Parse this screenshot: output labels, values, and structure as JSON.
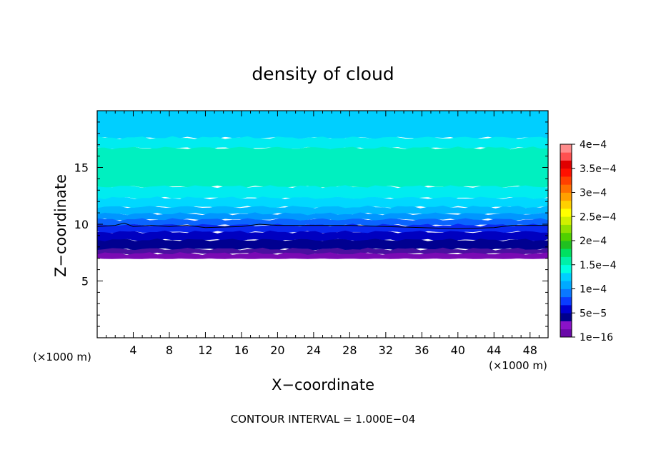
{
  "chart_data": {
    "type": "heatmap",
    "title": "density of cloud",
    "xlabel": "X−coordinate",
    "ylabel": "Z−coordinate",
    "x_unit": "(×1000 m)",
    "x_unit_right": "(×1000 m)",
    "xlim": [
      0,
      50
    ],
    "ylim": [
      0,
      20
    ],
    "x_ticks": [
      4,
      8,
      12,
      16,
      20,
      24,
      28,
      32,
      36,
      40,
      44,
      48
    ],
    "x_tick_labels": [
      "4",
      "8",
      "12",
      "16",
      "20",
      "24",
      "28",
      "32",
      "36",
      "40",
      "44",
      "48"
    ],
    "y_ticks": [
      5,
      10,
      15
    ],
    "y_tick_labels": [
      "5",
      "10",
      "15"
    ],
    "colorbar": {
      "labels": [
        "4e−4",
        "3.5e−4",
        "3e−4",
        "2.5e−4",
        "2e−4",
        "1.5e−4",
        "1e−4",
        "5e−5",
        "1e−16"
      ],
      "values": [
        0.0004,
        0.00035,
        0.0003,
        0.00025,
        0.0002,
        0.00015,
        0.0001,
        5e-05,
        1e-16
      ],
      "colors_bottom_to_top": [
        "#6a0aa8",
        "#8a12c8",
        "#00008c",
        "#0000d0",
        "#0a3cff",
        "#0a78ff",
        "#00aaff",
        "#00cfff",
        "#00ffe0",
        "#00f0a8",
        "#00e060",
        "#20c020",
        "#50d000",
        "#90e000",
        "#d0f000",
        "#ffff00",
        "#ffd000",
        "#ffa000",
        "#ff7000",
        "#ff4000",
        "#ff1000",
        "#e00000",
        "#ff5050",
        "#ff8c8c"
      ]
    },
    "field_bands": [
      {
        "z_bottom": 17.6,
        "z_top": 20.0,
        "color": "#00cfff"
      },
      {
        "z_bottom": 16.7,
        "z_top": 17.6,
        "color": "#00ecf0"
      },
      {
        "z_bottom": 13.3,
        "z_top": 16.7,
        "color": "#00f0c0"
      },
      {
        "z_bottom": 12.3,
        "z_top": 13.3,
        "color": "#00ecf0"
      },
      {
        "z_bottom": 11.5,
        "z_top": 12.3,
        "color": "#00d8ff"
      },
      {
        "z_bottom": 10.9,
        "z_top": 11.5,
        "color": "#00b8ff"
      },
      {
        "z_bottom": 10.4,
        "z_top": 10.9,
        "color": "#0096ff"
      },
      {
        "z_bottom": 9.9,
        "z_top": 10.4,
        "color": "#0a64ff"
      },
      {
        "z_bottom": 9.3,
        "z_top": 9.9,
        "color": "#0a28f0"
      },
      {
        "z_bottom": 8.6,
        "z_top": 9.3,
        "color": "#0000c0"
      },
      {
        "z_bottom": 7.8,
        "z_top": 8.6,
        "color": "#000090"
      },
      {
        "z_bottom": 7.4,
        "z_top": 7.8,
        "color": "#4a10a0"
      },
      {
        "z_bottom": 7.0,
        "z_top": 7.4,
        "color": "#7a0ab4"
      }
    ],
    "contour_line": {
      "x": [
        0,
        2,
        3,
        4,
        6,
        8,
        10,
        12,
        16,
        18,
        20,
        24,
        28,
        32,
        36,
        40,
        44,
        46,
        50
      ],
      "z": [
        9.8,
        9.9,
        10.1,
        9.8,
        9.9,
        9.8,
        9.9,
        9.7,
        9.8,
        10.0,
        9.9,
        9.9,
        9.9,
        9.8,
        9.7,
        9.6,
        9.7,
        9.9,
        9.9
      ]
    },
    "contour_interval_text": "CONTOUR INTERVAL = 1.000E−04"
  }
}
